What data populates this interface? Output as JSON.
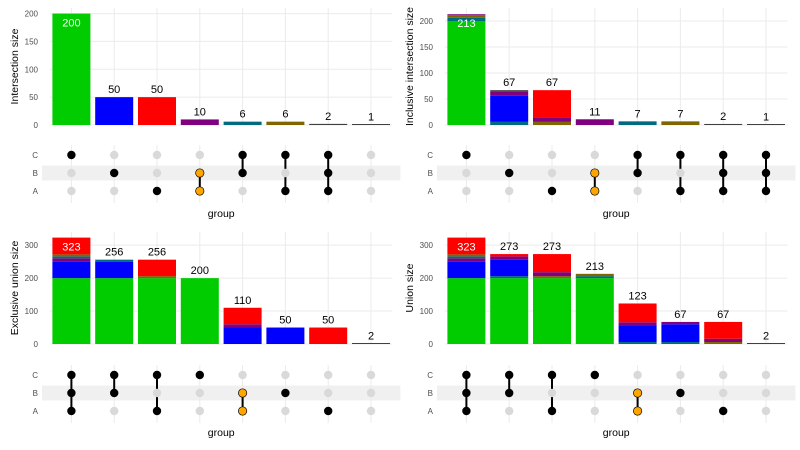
{
  "colors": {
    "green": "#00cc00",
    "blue": "#0000ff",
    "red": "#ff0000",
    "purple": "#800080",
    "teal": "#006b80",
    "olive": "#806600",
    "orange": "#ffa500",
    "gray_bar": "#404040",
    "dot_active": "#000000",
    "dot_inactive": "#d9d9d9",
    "stripe": "#f0f0f0",
    "grid": "#ebebeb"
  },
  "chart_data": [
    {
      "type": "bar",
      "id": "intersection",
      "ylabel": "Intersection size",
      "xlabel": "group",
      "ylim": [
        0,
        210
      ],
      "yticks": [
        0,
        50,
        100,
        150,
        200
      ],
      "sets": [
        "A",
        "B",
        "C"
      ],
      "columns": [
        {
          "members": [
            "C"
          ],
          "total": 200,
          "label": "200",
          "label_inside": true,
          "segments": [
            {
              "value": 200,
              "color": "green"
            }
          ]
        },
        {
          "members": [
            "B"
          ],
          "total": 50,
          "label": "50",
          "segments": [
            {
              "value": 50,
              "color": "blue"
            }
          ]
        },
        {
          "members": [
            "A"
          ],
          "total": 50,
          "label": "50",
          "segments": [
            {
              "value": 50,
              "color": "red"
            }
          ]
        },
        {
          "members": [
            "A",
            "B"
          ],
          "total": 10,
          "label": "10",
          "highlight": true,
          "segments": [
            {
              "value": 10,
              "color": "purple"
            }
          ]
        },
        {
          "members": [
            "B",
            "C"
          ],
          "total": 6,
          "label": "6",
          "segments": [
            {
              "value": 6,
              "color": "teal"
            }
          ]
        },
        {
          "members": [
            "A",
            "C"
          ],
          "total": 6,
          "label": "6",
          "segments": [
            {
              "value": 6,
              "color": "olive"
            }
          ]
        },
        {
          "members": [
            "A",
            "B",
            "C"
          ],
          "total": 2,
          "label": "2",
          "segments": [
            {
              "value": 2,
              "color": "gray_bar"
            }
          ]
        },
        {
          "members": [],
          "total": 1,
          "label": "1",
          "segments": [
            {
              "value": 1,
              "color": "gray_bar"
            }
          ]
        }
      ]
    },
    {
      "type": "bar",
      "id": "inclusive-intersection",
      "ylabel": "Inclusive intersection size",
      "xlabel": "group",
      "ylim": [
        0,
        225
      ],
      "yticks": [
        0,
        50,
        100,
        150,
        200
      ],
      "sets": [
        "A",
        "B",
        "C"
      ],
      "columns": [
        {
          "members": [
            "C"
          ],
          "total": 213,
          "label": "213",
          "label_inside": true,
          "segments": [
            {
              "value": 200,
              "color": "green"
            },
            {
              "value": 6,
              "color": "teal"
            },
            {
              "value": 5,
              "color": "olive"
            },
            {
              "value": 2,
              "color": "purple"
            }
          ]
        },
        {
          "members": [
            "B"
          ],
          "total": 67,
          "label": "67",
          "segments": [
            {
              "value": 6,
              "color": "teal"
            },
            {
              "value": 50,
              "color": "blue"
            },
            {
              "value": 9,
              "color": "purple"
            },
            {
              "value": 2,
              "color": "gray_bar"
            }
          ]
        },
        {
          "members": [
            "A"
          ],
          "total": 67,
          "label": "67",
          "segments": [
            {
              "value": 6,
              "color": "olive"
            },
            {
              "value": 9,
              "color": "purple"
            },
            {
              "value": 52,
              "color": "red"
            }
          ]
        },
        {
          "members": [
            "A",
            "B"
          ],
          "total": 11,
          "label": "11",
          "highlight": true,
          "segments": [
            {
              "value": 11,
              "color": "purple"
            }
          ]
        },
        {
          "members": [
            "B",
            "C"
          ],
          "total": 7,
          "label": "7",
          "segments": [
            {
              "value": 7,
              "color": "teal"
            }
          ]
        },
        {
          "members": [
            "A",
            "C"
          ],
          "total": 7,
          "label": "7",
          "segments": [
            {
              "value": 7,
              "color": "olive"
            }
          ]
        },
        {
          "members": [
            "A",
            "B",
            "C"
          ],
          "total": 2,
          "label": "2",
          "segments": [
            {
              "value": 2,
              "color": "gray_bar"
            }
          ]
        },
        {
          "members": [
            "A",
            "B",
            "C"
          ],
          "total": 1,
          "label": "1",
          "segments": [
            {
              "value": 1,
              "color": "gray_bar"
            }
          ]
        }
      ]
    },
    {
      "type": "bar",
      "id": "exclusive-union",
      "ylabel": "Exclusive union size",
      "xlabel": "group",
      "ylim": [
        0,
        340
      ],
      "yticks": [
        0,
        100,
        200,
        300
      ],
      "sets": [
        "A",
        "B",
        "C"
      ],
      "columns": [
        {
          "members": [
            "A",
            "B",
            "C"
          ],
          "total": 323,
          "label": "323",
          "label_inside": true,
          "segments": [
            {
              "value": 200,
              "color": "green"
            },
            {
              "value": 50,
              "color": "blue"
            },
            {
              "value": 10,
              "color": "purple"
            },
            {
              "value": 6,
              "color": "teal"
            },
            {
              "value": 6,
              "color": "olive"
            },
            {
              "value": 51,
              "color": "red"
            }
          ]
        },
        {
          "members": [
            "B",
            "C"
          ],
          "total": 256,
          "label": "256",
          "segments": [
            {
              "value": 200,
              "color": "green"
            },
            {
              "value": 50,
              "color": "blue"
            },
            {
              "value": 6,
              "color": "teal"
            }
          ]
        },
        {
          "members": [
            "A",
            "C"
          ],
          "total": 256,
          "label": "256",
          "segments": [
            {
              "value": 200,
              "color": "green"
            },
            {
              "value": 6,
              "color": "olive"
            },
            {
              "value": 50,
              "color": "red"
            }
          ]
        },
        {
          "members": [
            "C"
          ],
          "total": 200,
          "label": "200",
          "segments": [
            {
              "value": 200,
              "color": "green"
            }
          ]
        },
        {
          "members": [
            "A",
            "B"
          ],
          "total": 110,
          "label": "110",
          "highlight": true,
          "segments": [
            {
              "value": 50,
              "color": "blue"
            },
            {
              "value": 10,
              "color": "purple"
            },
            {
              "value": 50,
              "color": "red"
            }
          ]
        },
        {
          "members": [
            "B"
          ],
          "total": 50,
          "label": "50",
          "segments": [
            {
              "value": 50,
              "color": "blue"
            }
          ]
        },
        {
          "members": [
            "A"
          ],
          "total": 50,
          "label": "50",
          "segments": [
            {
              "value": 50,
              "color": "red"
            }
          ]
        },
        {
          "members": [],
          "total": 2,
          "label": "2",
          "segments": [
            {
              "value": 2,
              "color": "gray_bar"
            }
          ]
        }
      ]
    },
    {
      "type": "bar",
      "id": "union",
      "ylabel": "Union size",
      "xlabel": "group",
      "ylim": [
        0,
        340
      ],
      "yticks": [
        0,
        100,
        200,
        300
      ],
      "sets": [
        "A",
        "B",
        "C"
      ],
      "columns": [
        {
          "members": [
            "A",
            "B",
            "C"
          ],
          "total": 323,
          "label": "323",
          "label_inside": true,
          "segments": [
            {
              "value": 200,
              "color": "green"
            },
            {
              "value": 50,
              "color": "blue"
            },
            {
              "value": 10,
              "color": "purple"
            },
            {
              "value": 6,
              "color": "teal"
            },
            {
              "value": 6,
              "color": "olive"
            },
            {
              "value": 51,
              "color": "red"
            }
          ]
        },
        {
          "members": [
            "B",
            "C"
          ],
          "total": 273,
          "label": "273",
          "segments": [
            {
              "value": 200,
              "color": "green"
            },
            {
              "value": 6,
              "color": "teal"
            },
            {
              "value": 50,
              "color": "blue"
            },
            {
              "value": 10,
              "color": "purple"
            },
            {
              "value": 7,
              "color": "red"
            }
          ]
        },
        {
          "members": [
            "A",
            "C"
          ],
          "total": 273,
          "label": "273",
          "segments": [
            {
              "value": 200,
              "color": "green"
            },
            {
              "value": 6,
              "color": "olive"
            },
            {
              "value": 12,
              "color": "purple"
            },
            {
              "value": 55,
              "color": "red"
            }
          ]
        },
        {
          "members": [
            "C"
          ],
          "total": 213,
          "label": "213",
          "segments": [
            {
              "value": 200,
              "color": "green"
            },
            {
              "value": 6,
              "color": "teal"
            },
            {
              "value": 7,
              "color": "olive"
            }
          ]
        },
        {
          "members": [
            "A",
            "B"
          ],
          "total": 123,
          "label": "123",
          "highlight": true,
          "segments": [
            {
              "value": 6,
              "color": "teal"
            },
            {
              "value": 50,
              "color": "blue"
            },
            {
              "value": 10,
              "color": "purple"
            },
            {
              "value": 57,
              "color": "red"
            }
          ]
        },
        {
          "members": [
            "B"
          ],
          "total": 67,
          "label": "67",
          "segments": [
            {
              "value": 6,
              "color": "teal"
            },
            {
              "value": 54,
              "color": "blue"
            },
            {
              "value": 7,
              "color": "purple"
            }
          ]
        },
        {
          "members": [
            "A"
          ],
          "total": 67,
          "label": "67",
          "segments": [
            {
              "value": 6,
              "color": "olive"
            },
            {
              "value": 10,
              "color": "purple"
            },
            {
              "value": 51,
              "color": "red"
            }
          ]
        },
        {
          "members": [],
          "total": 2,
          "label": "2",
          "segments": [
            {
              "value": 2,
              "color": "gray_bar"
            }
          ]
        }
      ]
    }
  ]
}
